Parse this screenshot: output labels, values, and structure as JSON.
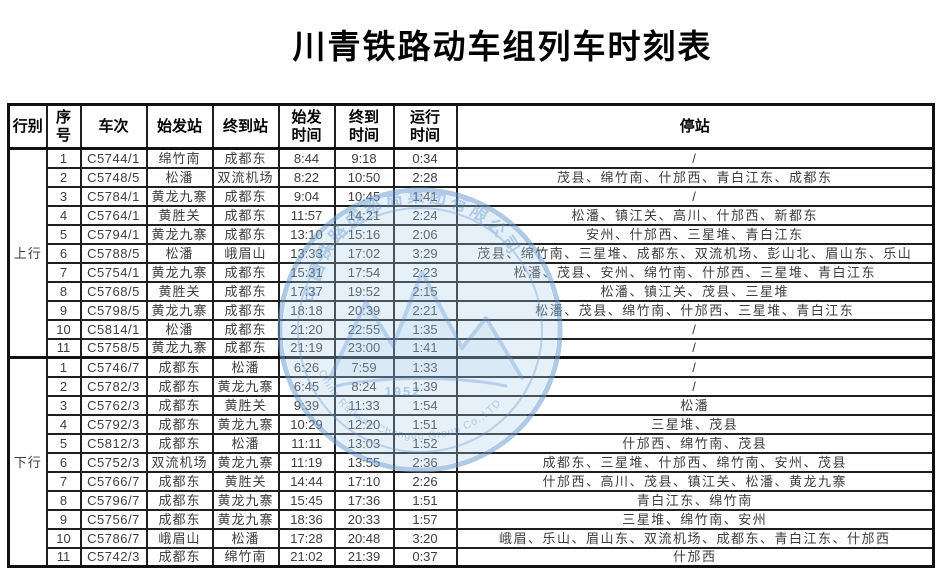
{
  "page": {
    "title": "川青铁路动车组列车时刻表"
  },
  "table": {
    "headers": {
      "direction": "行别",
      "seq": "序\n号",
      "train": "车次",
      "origin": "始发站",
      "terminal": "终到站",
      "dep": "始发\n时间",
      "arr": "终到\n时间",
      "dur": "运行\n时间",
      "stops": "停站"
    },
    "sections": [
      {
        "direction": "上行",
        "rows": [
          {
            "seq": "1",
            "train": "C5744/1",
            "origin": "绵竹南",
            "terminal": "成都东",
            "dep": "8:44",
            "arr": "9:18",
            "dur": "0:34",
            "stops": "/"
          },
          {
            "seq": "2",
            "train": "C5748/5",
            "origin": "松潘",
            "terminal": "双流机场",
            "dep": "8:22",
            "arr": "10:50",
            "dur": "2:28",
            "stops": "茂县、绵竹南、什邡西、青白江东、成都东"
          },
          {
            "seq": "3",
            "train": "C5784/1",
            "origin": "黄龙九寨",
            "terminal": "成都东",
            "dep": "9:04",
            "arr": "10:45",
            "dur": "1:41",
            "stops": "/"
          },
          {
            "seq": "4",
            "train": "C5764/1",
            "origin": "黄胜关",
            "terminal": "成都东",
            "dep": "11:57",
            "arr": "14:21",
            "dur": "2:24",
            "stops": "松潘、镇江关、高川、什邡西、新都东"
          },
          {
            "seq": "5",
            "train": "C5794/1",
            "origin": "黄龙九寨",
            "terminal": "成都东",
            "dep": "13:10",
            "arr": "15:16",
            "dur": "2:06",
            "stops": "安州、什邡西、三星堆、青白江东"
          },
          {
            "seq": "6",
            "train": "C5788/5",
            "origin": "松潘",
            "terminal": "峨眉山",
            "dep": "13:33",
            "arr": "17:02",
            "dur": "3:29",
            "stops": "茂县、绵竹南、三星堆、成都东、双流机场、彭山北、眉山东、乐山"
          },
          {
            "seq": "7",
            "train": "C5754/1",
            "origin": "黄龙九寨",
            "terminal": "成都东",
            "dep": "15:31",
            "arr": "17:54",
            "dur": "2:23",
            "stops": "松潘、茂县、安州、绵竹南、什邡西、三星堆、青白江东"
          },
          {
            "seq": "8",
            "train": "C5768/5",
            "origin": "黄胜关",
            "terminal": "成都东",
            "dep": "17:37",
            "arr": "19:52",
            "dur": "2:15",
            "stops": "松潘、镇江关、茂县、三星堆"
          },
          {
            "seq": "9",
            "train": "C5798/5",
            "origin": "黄龙九寨",
            "terminal": "成都东",
            "dep": "18:18",
            "arr": "20:39",
            "dur": "2:21",
            "stops": "松潘、茂县、绵竹南、什邡西、三星堆、青白江东"
          },
          {
            "seq": "10",
            "train": "C5814/1",
            "origin": "松潘",
            "terminal": "成都东",
            "dep": "21:20",
            "arr": "22:55",
            "dur": "1:35",
            "stops": "/"
          },
          {
            "seq": "11",
            "train": "C5758/5",
            "origin": "黄龙九寨",
            "terminal": "成都东",
            "dep": "21:19",
            "arr": "23:00",
            "dur": "1:41",
            "stops": "/"
          }
        ]
      },
      {
        "direction": "下行",
        "rows": [
          {
            "seq": "1",
            "train": "C5746/7",
            "origin": "成都东",
            "terminal": "松潘",
            "dep": "6:26",
            "arr": "7:59",
            "dur": "1:33",
            "stops": "/"
          },
          {
            "seq": "2",
            "train": "C5782/3",
            "origin": "成都东",
            "terminal": "黄龙九寨",
            "dep": "6:45",
            "arr": "8:24",
            "dur": "1:39",
            "stops": "/"
          },
          {
            "seq": "3",
            "train": "C5762/3",
            "origin": "成都东",
            "terminal": "黄胜关",
            "dep": "9:39",
            "arr": "11:33",
            "dur": "1:54",
            "stops": "松潘"
          },
          {
            "seq": "4",
            "train": "C5792/3",
            "origin": "成都东",
            "terminal": "黄龙九寨",
            "dep": "10:29",
            "arr": "12:20",
            "dur": "1:51",
            "stops": "三星堆、茂县"
          },
          {
            "seq": "5",
            "train": "C5812/3",
            "origin": "成都东",
            "terminal": "松潘",
            "dep": "11:11",
            "arr": "13:03",
            "dur": "1:52",
            "stops": "什邡西、绵竹南、茂县"
          },
          {
            "seq": "6",
            "train": "C5752/3",
            "origin": "双流机场",
            "terminal": "黄龙九寨",
            "dep": "11:19",
            "arr": "13:55",
            "dur": "2:36",
            "stops": "成都东、三星堆、什邡西、绵竹南、安州、茂县"
          },
          {
            "seq": "7",
            "train": "C5766/7",
            "origin": "成都东",
            "terminal": "黄胜关",
            "dep": "14:44",
            "arr": "17:10",
            "dur": "2:26",
            "stops": "什邡西、高川、茂县、镇江关、松潘、黄龙九寨"
          },
          {
            "seq": "8",
            "train": "C5796/7",
            "origin": "成都东",
            "terminal": "黄龙九寨",
            "dep": "15:45",
            "arr": "17:36",
            "dur": "1:51",
            "stops": "青白江东、绵竹南"
          },
          {
            "seq": "9",
            "train": "C5756/7",
            "origin": "成都东",
            "terminal": "黄龙九寨",
            "dep": "18:36",
            "arr": "20:33",
            "dur": "1:57",
            "stops": "三星堆、绵竹南、安州"
          },
          {
            "seq": "10",
            "train": "C5786/7",
            "origin": "峨眉山",
            "terminal": "松潘",
            "dep": "17:28",
            "arr": "20:48",
            "dur": "3:20",
            "stops": "峨眉、乐山、眉山东、双流机场、成都东、青白江东、什邡西"
          },
          {
            "seq": "11",
            "train": "C5742/3",
            "origin": "成都东",
            "terminal": "绵竹南",
            "dep": "21:02",
            "arr": "21:39",
            "dur": "0:37",
            "stops": "什邡西"
          }
        ]
      }
    ]
  },
  "watermark": {
    "ring_text_top": "中国铁路成都局集团有限公司",
    "year": "1952",
    "ring_text_bottom": "China Railway Chengdu Group Co.,LTD",
    "color": "#8fb8e0"
  }
}
